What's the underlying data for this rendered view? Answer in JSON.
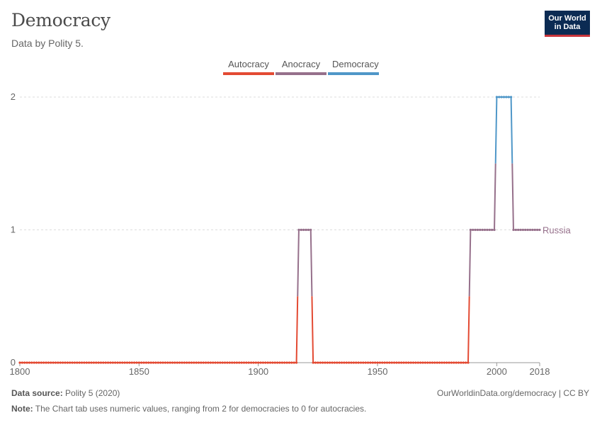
{
  "header": {
    "title": "Democracy",
    "subtitle": "Data by Polity 5.",
    "logo_line1": "Our World",
    "logo_line2": "in Data"
  },
  "legend": [
    {
      "label": "Autocracy",
      "color": "#e34a33"
    },
    {
      "label": "Anocracy",
      "color": "#96708b"
    },
    {
      "label": "Democracy",
      "color": "#4f97c8"
    }
  ],
  "chart_data": {
    "type": "line",
    "title": "Democracy",
    "series": [
      {
        "name": "Russia",
        "color": "#96708b",
        "points": [
          [
            1800,
            0
          ],
          [
            1916,
            0
          ],
          [
            1917,
            1
          ],
          [
            1922,
            1
          ],
          [
            1923,
            0
          ],
          [
            1988,
            0
          ],
          [
            1989,
            1
          ],
          [
            1999,
            1
          ],
          [
            2000,
            2
          ],
          [
            2006,
            2
          ],
          [
            2007,
            1
          ],
          [
            2018,
            1
          ]
        ]
      }
    ],
    "category_colors": {
      "0": "#e34a33",
      "1": "#96708b",
      "2": "#4f97c8"
    },
    "x_ticks": [
      "1800",
      "1850",
      "1900",
      "1950",
      "2000",
      "2018"
    ],
    "y_ticks": [
      "0",
      "1",
      "2"
    ],
    "xlim": [
      1800,
      2018
    ],
    "ylim": [
      0,
      2
    ],
    "series_label": "Russia"
  },
  "footer": {
    "source_label": "Data source:",
    "source_value": "Polity 5 (2020)",
    "note_label": "Note:",
    "note_value": "The Chart tab uses numeric values, ranging from 2 for democracies to 0 for autocracies.",
    "credit": "OurWorldinData.org/democracy | CC BY"
  }
}
